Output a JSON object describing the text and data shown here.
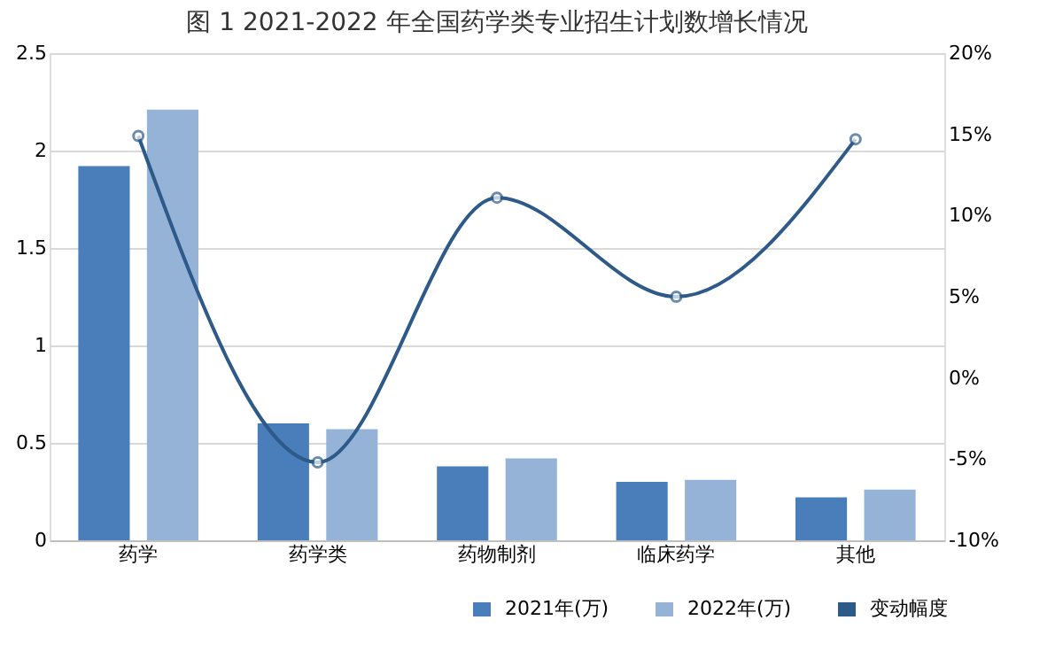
{
  "chart_data": {
    "type": "bar",
    "title": "图 1 2021-2022 年全国药学类专业招生计划数增长情况",
    "categories": [
      "药学",
      "药学类",
      "药物制剂",
      "临床药学",
      "其他"
    ],
    "series": [
      {
        "name": "2021年(万)",
        "color": "#4a7ebb",
        "values": [
          1.92,
          0.6,
          0.38,
          0.3,
          0.22
        ]
      },
      {
        "name": "2022年(万)",
        "color": "#95b3d7",
        "values": [
          2.21,
          0.57,
          0.42,
          0.31,
          0.26
        ]
      },
      {
        "name": "变动幅度",
        "type": "line",
        "axis": "y2",
        "color": "#2e5a8a",
        "marker": "circle",
        "values": [
          14.9,
          -5.2,
          11.1,
          5.0,
          14.7
        ]
      }
    ],
    "ylim": [
      0,
      2.5
    ],
    "yticks": [
      0,
      0.5,
      1,
      1.5,
      2,
      2.5
    ],
    "y2lim": [
      -10,
      20
    ],
    "y2ticks": [
      {
        "value": -10,
        "label": "-10%"
      },
      {
        "value": -5,
        "label": "-5%"
      },
      {
        "value": 0,
        "label": "0%"
      },
      {
        "value": 5,
        "label": "5%"
      },
      {
        "value": 10,
        "label": "10%"
      },
      {
        "value": 15,
        "label": "15%"
      },
      {
        "value": 20,
        "label": "20%"
      }
    ],
    "grid": "y",
    "legend": "bottom right"
  }
}
